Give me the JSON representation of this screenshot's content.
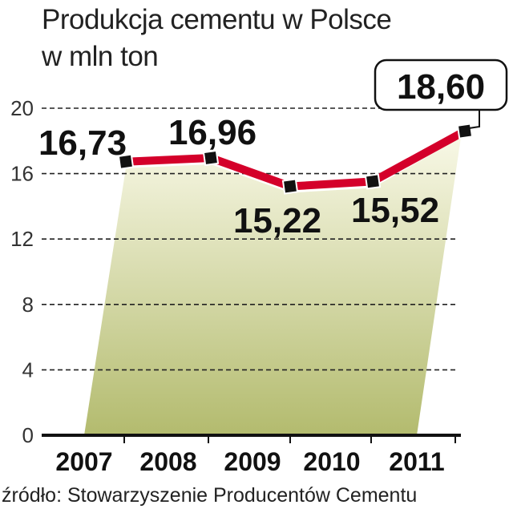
{
  "title_line1": "Produkcja cementu w Polsce",
  "title_line2": "w mln ton",
  "source": "źródło: Stowarzyszenie Producentów Cementu",
  "chart_data": {
    "type": "line",
    "title": "Produkcja cementu w Polsce w mln ton",
    "categories": [
      "2007",
      "2008",
      "2009",
      "2010",
      "2011"
    ],
    "values": [
      16.73,
      16.96,
      15.22,
      15.52,
      18.6
    ],
    "data_labels": [
      "16,73",
      "16,96",
      "15,22",
      "15,52",
      "18,60"
    ],
    "ylim": [
      0,
      20
    ],
    "yticks": [
      0,
      4,
      8,
      12,
      16,
      20
    ],
    "grid": true,
    "colors": {
      "line": "#d4002a",
      "marker": "#111111",
      "fill_top": "#f8f8e6",
      "fill_bottom": "#b3bb6e"
    }
  }
}
